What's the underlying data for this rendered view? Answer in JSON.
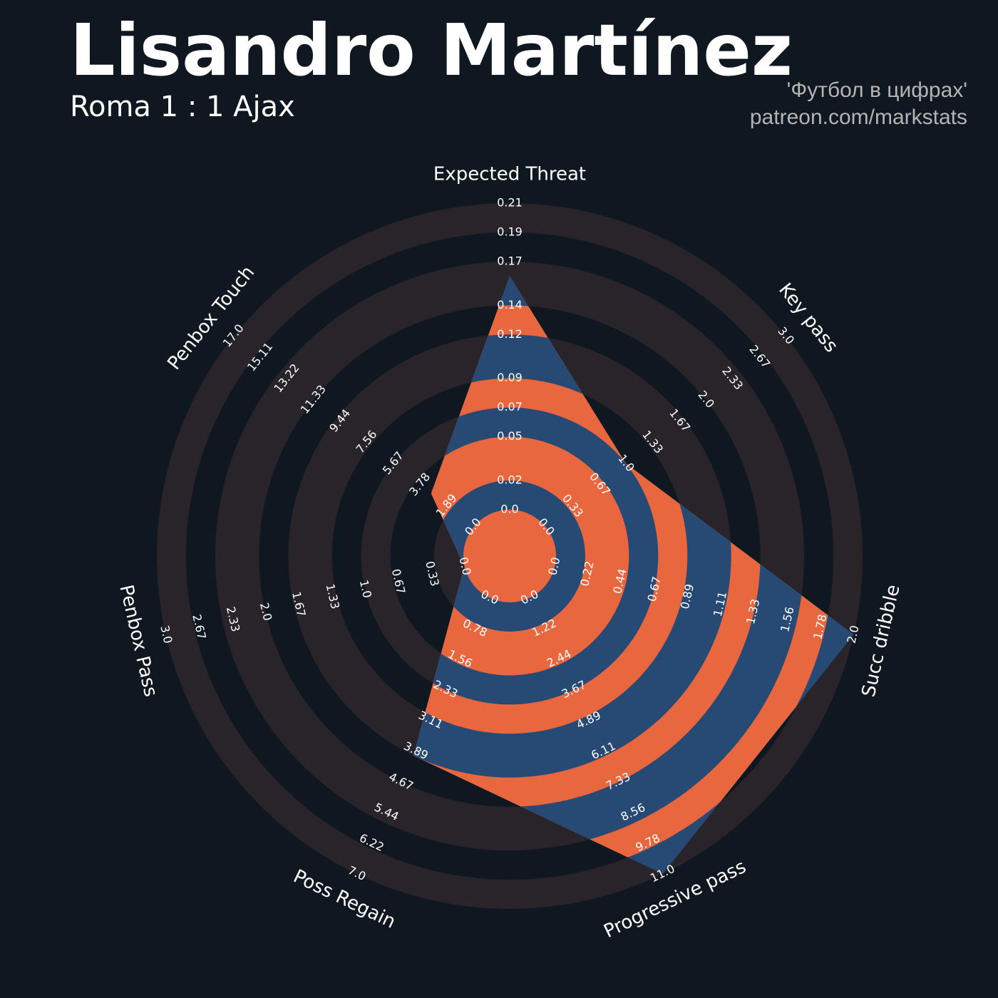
{
  "chart_data": {
    "type": "radar",
    "title": "Lisandro Martínez",
    "subtitle": "Roma 1 : 1 Ajax",
    "credits": [
      "'Футбол в цифрах'",
      "patreon.com/markstats"
    ],
    "categories": [
      "Expected Threat",
      "Key pass",
      "Succ dribble",
      "Progressive pass",
      "Poss Regain",
      "Penbox Pass",
      "Penbox Touch"
    ],
    "values": [
      0.16,
      1,
      2,
      11,
      4,
      0,
      3
    ],
    "ring_colors": [
      "#28242a",
      "#0f1820"
    ],
    "polygon_colors": [
      "#e8673f",
      "#274a74"
    ],
    "axes": [
      {
        "lim": [
          0,
          0.21
        ],
        "ticks": [
          {
            "value": 0,
            "label": "0.0"
          },
          0.02,
          0.05,
          0.07,
          0.09,
          0.12,
          0.14,
          0.17,
          0.19,
          0.21
        ]
      },
      {
        "lim": [
          0,
          3
        ],
        "ticks": [
          {
            "value": 0,
            "label": "0.0"
          },
          0.33,
          0.67,
          {
            "value": 1,
            "label": "1.0"
          },
          1.33,
          1.67,
          {
            "value": 2,
            "label": "2.0"
          },
          2.33,
          2.67,
          {
            "value": 3,
            "label": "3.0"
          }
        ]
      },
      {
        "lim": [
          0,
          2
        ],
        "ticks": [
          {
            "value": 0,
            "label": "0.0"
          },
          0.22,
          0.44,
          0.67,
          0.89,
          1.11,
          1.33,
          1.56,
          1.78,
          {
            "value": 2,
            "label": "2.0"
          }
        ]
      },
      {
        "lim": [
          0,
          11
        ],
        "ticks": [
          {
            "value": 0,
            "label": "0.0"
          },
          1.22,
          2.44,
          3.67,
          4.89,
          6.11,
          7.33,
          8.56,
          9.78,
          {
            "value": 11,
            "label": "11.0"
          }
        ]
      },
      {
        "lim": [
          0,
          7
        ],
        "ticks": [
          {
            "value": 0,
            "label": "0.0"
          },
          0.78,
          1.56,
          2.33,
          3.11,
          3.89,
          4.67,
          5.44,
          6.22,
          {
            "value": 7,
            "label": "7.0"
          }
        ]
      },
      {
        "lim": [
          0,
          3
        ],
        "ticks": [
          {
            "value": 0,
            "label": "0.0"
          },
          0.33,
          0.67,
          {
            "value": 1,
            "label": "1.0"
          },
          1.33,
          1.67,
          {
            "value": 2,
            "label": "2.0"
          },
          2.33,
          2.67,
          {
            "value": 3,
            "label": "3.0"
          }
        ]
      },
      {
        "lim": [
          0,
          17
        ],
        "ticks": [
          {
            "value": 0,
            "label": "0.0"
          },
          1.89,
          3.78,
          5.67,
          7.56,
          9.44,
          11.33,
          13.22,
          15.11,
          {
            "value": 17,
            "label": "17.0"
          }
        ]
      }
    ]
  }
}
